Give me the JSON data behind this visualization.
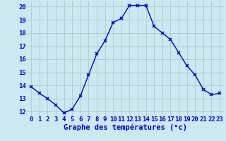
{
  "hours": [
    0,
    1,
    2,
    3,
    4,
    5,
    6,
    7,
    8,
    9,
    10,
    11,
    12,
    13,
    14,
    15,
    16,
    17,
    18,
    19,
    20,
    21,
    22,
    23
  ],
  "temperatures": [
    13.9,
    13.4,
    13.0,
    12.5,
    11.9,
    12.2,
    13.2,
    14.8,
    16.4,
    17.4,
    18.8,
    19.1,
    20.1,
    20.1,
    20.1,
    18.5,
    18.0,
    17.5,
    16.5,
    15.5,
    14.8,
    13.7,
    13.3,
    13.4
  ],
  "line_color": "#0000cc",
  "marker": "x",
  "marker_color": "#0000cc",
  "background_color": "#cce8f0",
  "grid_color": "#aacccc",
  "tick_label_color": "#0000cc",
  "xlabel": "Graphe des températures (°c)",
  "xlabel_color": "#0000cc",
  "ylim_min": 11.7,
  "ylim_max": 20.4,
  "xlim_min": -0.5,
  "xlim_max": 23.5,
  "yticks": [
    12,
    13,
    14,
    15,
    16,
    17,
    18,
    19,
    20
  ],
  "xticks": [
    0,
    1,
    2,
    3,
    4,
    5,
    6,
    7,
    8,
    9,
    10,
    11,
    12,
    13,
    14,
    15,
    16,
    17,
    18,
    19,
    20,
    21,
    22,
    23
  ],
  "font_size": 6.5,
  "xlabel_fontsize": 7.5,
  "xlabel_bold": true
}
